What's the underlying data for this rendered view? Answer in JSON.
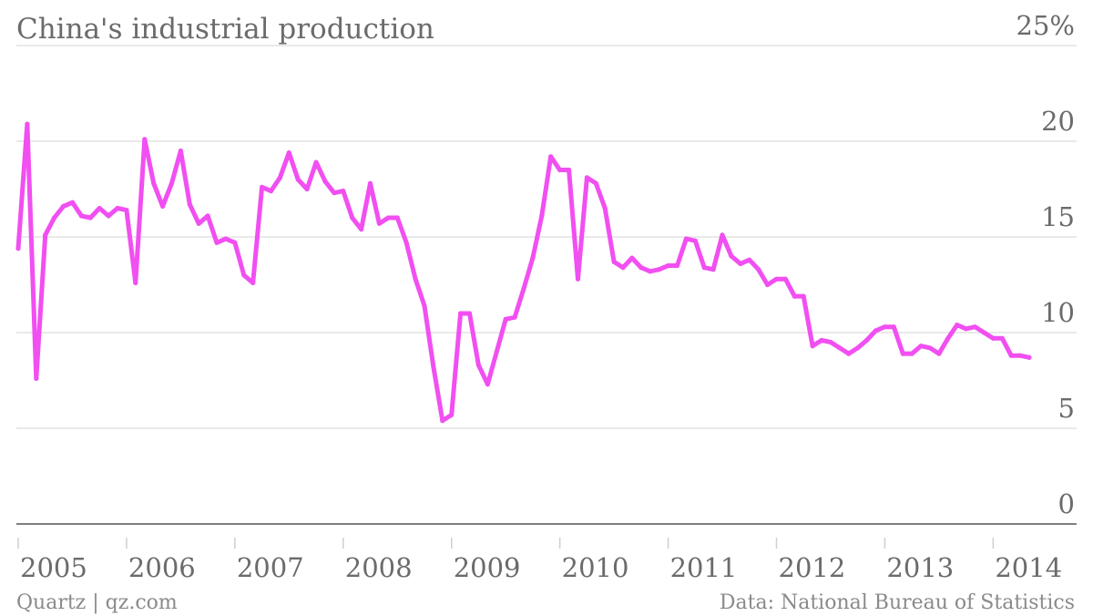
{
  "chart_data": {
    "type": "line",
    "title": "China's industrial production",
    "xlabel": "",
    "ylabel": "",
    "ylim": [
      0,
      25
    ],
    "y_unit": "%",
    "y_ticks": [
      0,
      5,
      10,
      15,
      20,
      25
    ],
    "y_tick_labels": [
      "0",
      "5",
      "10",
      "15",
      "20",
      "25%"
    ],
    "x_tick_labels": [
      "2005",
      "2006",
      "2007",
      "2008",
      "2009",
      "2010",
      "2011",
      "2012",
      "2013",
      "2014"
    ],
    "xlim": [
      "2005-01",
      "2014-10"
    ],
    "grid": true,
    "series": [
      {
        "color": "#f14ff1",
        "points": [
          [
            "2005-01",
            14.4
          ],
          [
            "2005-02",
            20.9
          ],
          [
            "2005-03",
            7.6
          ],
          [
            "2005-04",
            15.1
          ],
          [
            "2005-05",
            16.0
          ],
          [
            "2005-06",
            16.6
          ],
          [
            "2005-07",
            16.8
          ],
          [
            "2005-08",
            16.1
          ],
          [
            "2005-09",
            16.0
          ],
          [
            "2005-10",
            16.5
          ],
          [
            "2005-11",
            16.1
          ],
          [
            "2005-12",
            16.5
          ],
          [
            "2006-01",
            16.4
          ],
          [
            "2006-02",
            12.6
          ],
          [
            "2006-03",
            20.1
          ],
          [
            "2006-04",
            17.8
          ],
          [
            "2006-05",
            16.6
          ],
          [
            "2006-06",
            17.8
          ],
          [
            "2006-07",
            19.5
          ],
          [
            "2006-08",
            16.7
          ],
          [
            "2006-09",
            15.7
          ],
          [
            "2006-10",
            16.1
          ],
          [
            "2006-11",
            14.7
          ],
          [
            "2006-12",
            14.9
          ],
          [
            "2007-01",
            14.7
          ],
          [
            "2007-02",
            13.0
          ],
          [
            "2007-03",
            12.6
          ],
          [
            "2007-04",
            17.6
          ],
          [
            "2007-05",
            17.4
          ],
          [
            "2007-06",
            18.1
          ],
          [
            "2007-07",
            19.4
          ],
          [
            "2007-08",
            18.0
          ],
          [
            "2007-09",
            17.5
          ],
          [
            "2007-10",
            18.9
          ],
          [
            "2007-11",
            17.9
          ],
          [
            "2007-12",
            17.3
          ],
          [
            "2008-01",
            17.4
          ],
          [
            "2008-02",
            16.0
          ],
          [
            "2008-03",
            15.4
          ],
          [
            "2008-04",
            17.8
          ],
          [
            "2008-05",
            15.7
          ],
          [
            "2008-06",
            16.0
          ],
          [
            "2008-07",
            16.0
          ],
          [
            "2008-08",
            14.7
          ],
          [
            "2008-09",
            12.8
          ],
          [
            "2008-10",
            11.4
          ],
          [
            "2008-11",
            8.2
          ],
          [
            "2008-12",
            5.4
          ],
          [
            "2009-01",
            5.7
          ],
          [
            "2009-02",
            11.0
          ],
          [
            "2009-03",
            11.0
          ],
          [
            "2009-04",
            8.3
          ],
          [
            "2009-05",
            7.3
          ],
          [
            "2009-06",
            9.0
          ],
          [
            "2009-07",
            10.7
          ],
          [
            "2009-08",
            10.8
          ],
          [
            "2009-09",
            12.3
          ],
          [
            "2009-10",
            13.9
          ],
          [
            "2009-11",
            16.1
          ],
          [
            "2009-12",
            19.2
          ],
          [
            "2010-01",
            18.5
          ],
          [
            "2010-02",
            18.5
          ],
          [
            "2010-03",
            12.8
          ],
          [
            "2010-04",
            18.1
          ],
          [
            "2010-05",
            17.8
          ],
          [
            "2010-06",
            16.5
          ],
          [
            "2010-07",
            13.7
          ],
          [
            "2010-08",
            13.4
          ],
          [
            "2010-09",
            13.9
          ],
          [
            "2010-10",
            13.4
          ],
          [
            "2010-11",
            13.2
          ],
          [
            "2010-12",
            13.3
          ],
          [
            "2011-01",
            13.5
          ],
          [
            "2011-02",
            13.5
          ],
          [
            "2011-03",
            14.9
          ],
          [
            "2011-04",
            14.8
          ],
          [
            "2011-05",
            13.4
          ],
          [
            "2011-06",
            13.3
          ],
          [
            "2011-07",
            15.1
          ],
          [
            "2011-08",
            14.0
          ],
          [
            "2011-09",
            13.6
          ],
          [
            "2011-10",
            13.8
          ],
          [
            "2011-11",
            13.3
          ],
          [
            "2011-12",
            12.5
          ],
          [
            "2012-01",
            12.8
          ],
          [
            "2012-02",
            12.8
          ],
          [
            "2012-03",
            11.9
          ],
          [
            "2012-04",
            11.9
          ],
          [
            "2012-05",
            9.3
          ],
          [
            "2012-06",
            9.6
          ],
          [
            "2012-07",
            9.5
          ],
          [
            "2012-08",
            9.2
          ],
          [
            "2012-09",
            8.9
          ],
          [
            "2012-10",
            9.2
          ],
          [
            "2012-11",
            9.6
          ],
          [
            "2012-12",
            10.1
          ],
          [
            "2013-01",
            10.3
          ],
          [
            "2013-02",
            10.3
          ],
          [
            "2013-03",
            8.9
          ],
          [
            "2013-04",
            8.9
          ],
          [
            "2013-05",
            9.3
          ],
          [
            "2013-06",
            9.2
          ],
          [
            "2013-07",
            8.9
          ],
          [
            "2013-08",
            9.7
          ],
          [
            "2013-09",
            10.4
          ],
          [
            "2013-10",
            10.2
          ],
          [
            "2013-11",
            10.3
          ],
          [
            "2013-12",
            10.0
          ],
          [
            "2014-01",
            9.7
          ],
          [
            "2014-02",
            9.7
          ],
          [
            "2014-03",
            8.8
          ],
          [
            "2014-04",
            8.8
          ],
          [
            "2014-05",
            8.7
          ]
        ]
      }
    ]
  },
  "footer": {
    "credit": "Quartz | qz.com",
    "source": "Data: National Bureau of Statistics"
  },
  "colors": {
    "line": "#f14ff1",
    "text": "#6b6b6b",
    "grid": "#e2e2e2",
    "axis": "#555555"
  }
}
